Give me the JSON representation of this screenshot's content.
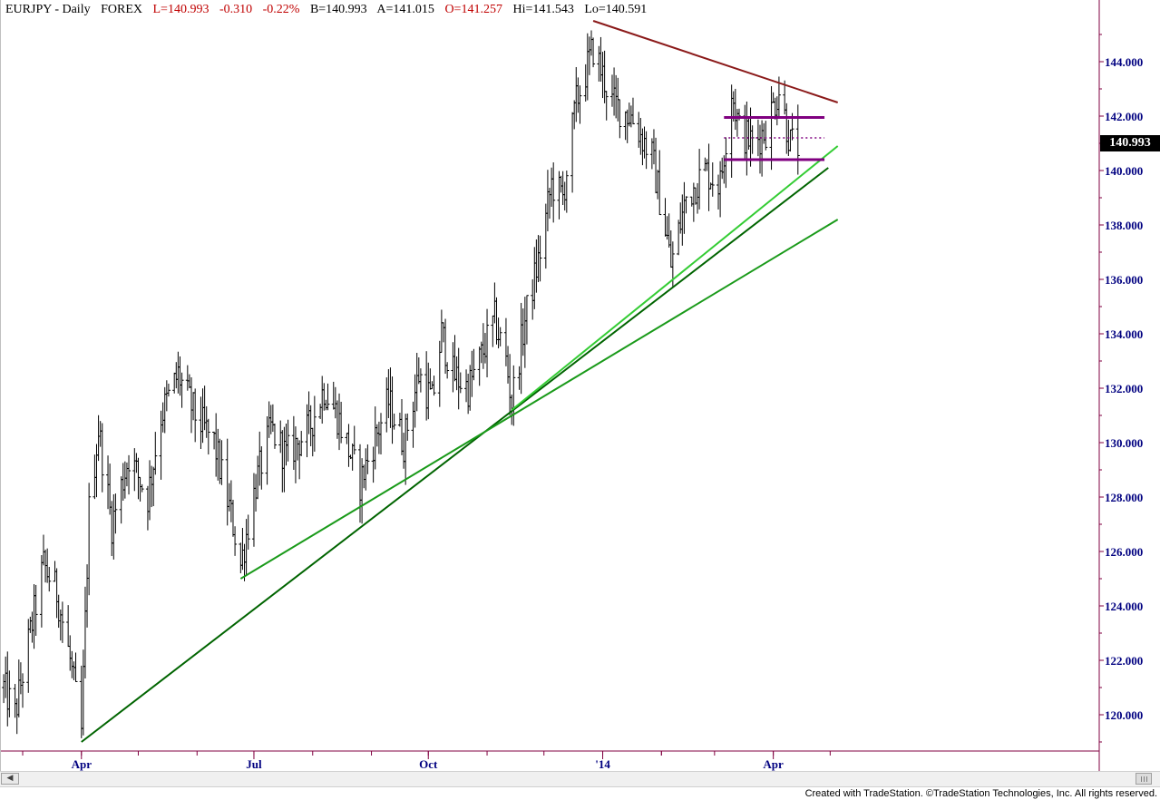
{
  "header": {
    "symbol": "EURJPY - Daily",
    "market": "FOREX",
    "last": "L=140.993",
    "change": "-0.310",
    "change_pct": "-0.22%",
    "bid": "B=140.993",
    "ask": "A=141.015",
    "open": "O=141.257",
    "high": "Hi=141.543",
    "low": "Lo=140.591"
  },
  "footer": "Created with TradeStation. ©TradeStation Technologies, Inc. All rights reserved.",
  "last_price_label": "140.993",
  "colors": {
    "bars": "#000000",
    "axis": "#800040",
    "axis_labels": "#000080",
    "resistance": "#8b1a1a",
    "support_light": "#33cc33",
    "support_dark": "#006400",
    "support_mid": "#1a9a1a",
    "range": "#800080",
    "header_red": "#c00000"
  },
  "chart_data": {
    "type": "ohlc",
    "title": "EURJPY - Daily FOREX",
    "y_axis": {
      "min": 118.5,
      "max": 146.0,
      "ticks": [
        "120.000",
        "122.000",
        "124.000",
        "126.000",
        "128.000",
        "130.000",
        "132.000",
        "134.000",
        "136.000",
        "138.000",
        "140.000",
        "142.000",
        "144.000"
      ]
    },
    "x_axis": {
      "labels": [
        "Apr",
        "Jul",
        "Oct",
        "'14",
        "Apr"
      ]
    },
    "price_path": [
      [
        "2013-02-19",
        121.0
      ],
      [
        "2013-02-25",
        120.0
      ],
      [
        "2013-03-05",
        123.0
      ],
      [
        "2013-03-12",
        125.5
      ],
      [
        "2013-03-19",
        124.5
      ],
      [
        "2013-03-26",
        122.0
      ],
      [
        "2013-04-01",
        119.3
      ],
      [
        "2013-04-05",
        127.5
      ],
      [
        "2013-04-10",
        130.5
      ],
      [
        "2013-04-17",
        127.0
      ],
      [
        "2013-04-26",
        129.5
      ],
      [
        "2013-05-06",
        128.0
      ],
      [
        "2013-05-13",
        131.0
      ],
      [
        "2013-05-22",
        132.5
      ],
      [
        "2013-05-31",
        131.0
      ],
      [
        "2013-06-10",
        130.0
      ],
      [
        "2013-06-20",
        127.0
      ],
      [
        "2013-06-24",
        125.5
      ],
      [
        "2013-07-02",
        128.5
      ],
      [
        "2013-07-10",
        130.5
      ],
      [
        "2013-07-18",
        129.5
      ],
      [
        "2013-07-30",
        130.5
      ],
      [
        "2013-08-07",
        132.0
      ],
      [
        "2013-08-14",
        131.0
      ],
      [
        "2013-08-26",
        128.5
      ],
      [
        "2013-09-02",
        130.0
      ],
      [
        "2013-09-10",
        131.5
      ],
      [
        "2013-09-18",
        130.0
      ],
      [
        "2013-09-26",
        132.5
      ],
      [
        "2013-10-03",
        131.5
      ],
      [
        "2013-10-08",
        134.0
      ],
      [
        "2013-10-14",
        132.5
      ],
      [
        "2013-10-22",
        132.0
      ],
      [
        "2013-10-28",
        133.0
      ],
      [
        "2013-11-05",
        134.5
      ],
      [
        "2013-11-11",
        133.0
      ],
      [
        "2013-11-14",
        131.5
      ],
      [
        "2013-11-21",
        134.5
      ],
      [
        "2013-11-29",
        137.0
      ],
      [
        "2013-12-05",
        139.5
      ],
      [
        "2013-12-11",
        139.0
      ],
      [
        "2013-12-18",
        142.5
      ],
      [
        "2013-12-27",
        144.5
      ],
      [
        "2014-01-06",
        142.5
      ],
      [
        "2014-01-16",
        142.0
      ],
      [
        "2014-01-27",
        140.5
      ],
      [
        "2014-02-04",
        137.5
      ],
      [
        "2014-02-06",
        136.5
      ],
      [
        "2014-02-14",
        139.0
      ],
      [
        "2014-02-24",
        140.0
      ],
      [
        "2014-03-04",
        139.5
      ],
      [
        "2014-03-10",
        143.0
      ],
      [
        "2014-03-14",
        141.5
      ],
      [
        "2014-03-21",
        141.0
      ],
      [
        "2014-03-28",
        141.5
      ],
      [
        "2014-04-04",
        143.0
      ],
      [
        "2014-04-10",
        141.0
      ],
      [
        "2014-04-14",
        140.9
      ]
    ],
    "trendlines": [
      {
        "kind": "resistance",
        "from": [
          "2013-12-27",
          145.5
        ],
        "to": [
          "2014-05-05",
          142.5
        ]
      },
      {
        "kind": "support_dark",
        "from": [
          "2013-04-01",
          119.0
        ],
        "to": [
          "2014-04-30",
          140.1
        ]
      },
      {
        "kind": "support_light",
        "from": [
          "2013-11-14",
          131.2
        ],
        "to": [
          "2014-05-05",
          140.9
        ]
      },
      {
        "kind": "support_mid",
        "from": [
          "2013-06-24",
          125.0
        ],
        "to": [
          "2014-05-05",
          138.2
        ]
      }
    ],
    "range_lines": {
      "from": "2014-03-06",
      "to": "2014-04-28",
      "upper": 141.95,
      "middle": 141.2,
      "lower": 140.4
    },
    "last": 140.993
  }
}
